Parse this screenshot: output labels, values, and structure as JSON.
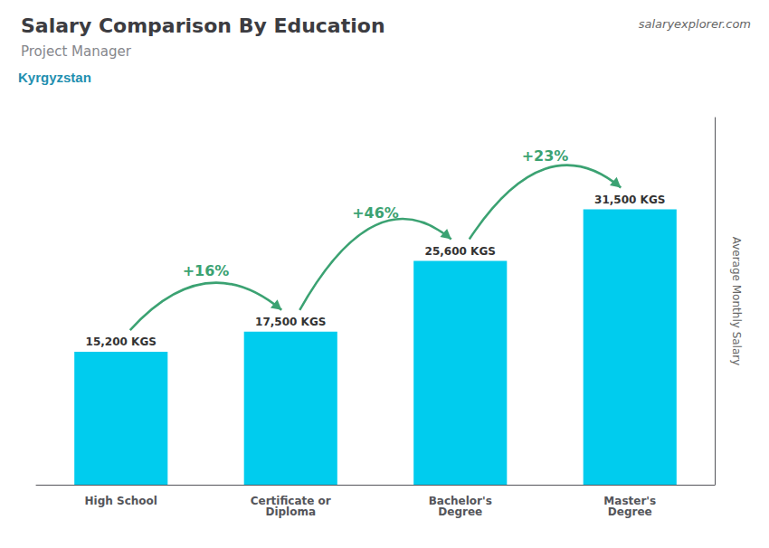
{
  "chart_data": {
    "type": "bar",
    "title": "Salary Comparison By Education",
    "subtitle": "Project Manager",
    "ylabel": "Average Monthly Salary",
    "categories": [
      "High School",
      "Certificate or\nDiploma",
      "Bachelor's\nDegree",
      "Master's\nDegree"
    ],
    "values": [
      15200,
      17500,
      25600,
      31500
    ],
    "value_labels": [
      "15,200 KGS",
      "17,500 KGS",
      "25,600 KGS",
      "31,500 KGS"
    ],
    "data_labels": true,
    "color": "#00ccee",
    "ylim": [
      0,
      42000
    ],
    "tick_labels": "x",
    "grid": false,
    "annotations": [
      {
        "text": "Kyrgyzstan"
      },
      {
        "text": "salaryexplorer.com"
      },
      {
        "text": "+16%",
        "from": "High School",
        "to": "Certificate or\nDiploma"
      },
      {
        "text": "+46%",
        "from": "Certificate or\nDiploma",
        "to": "Bachelor's\nDegree"
      },
      {
        "text": "+23%",
        "from": "Bachelor's\nDegree",
        "to": "Master's\nDegree"
      }
    ]
  }
}
